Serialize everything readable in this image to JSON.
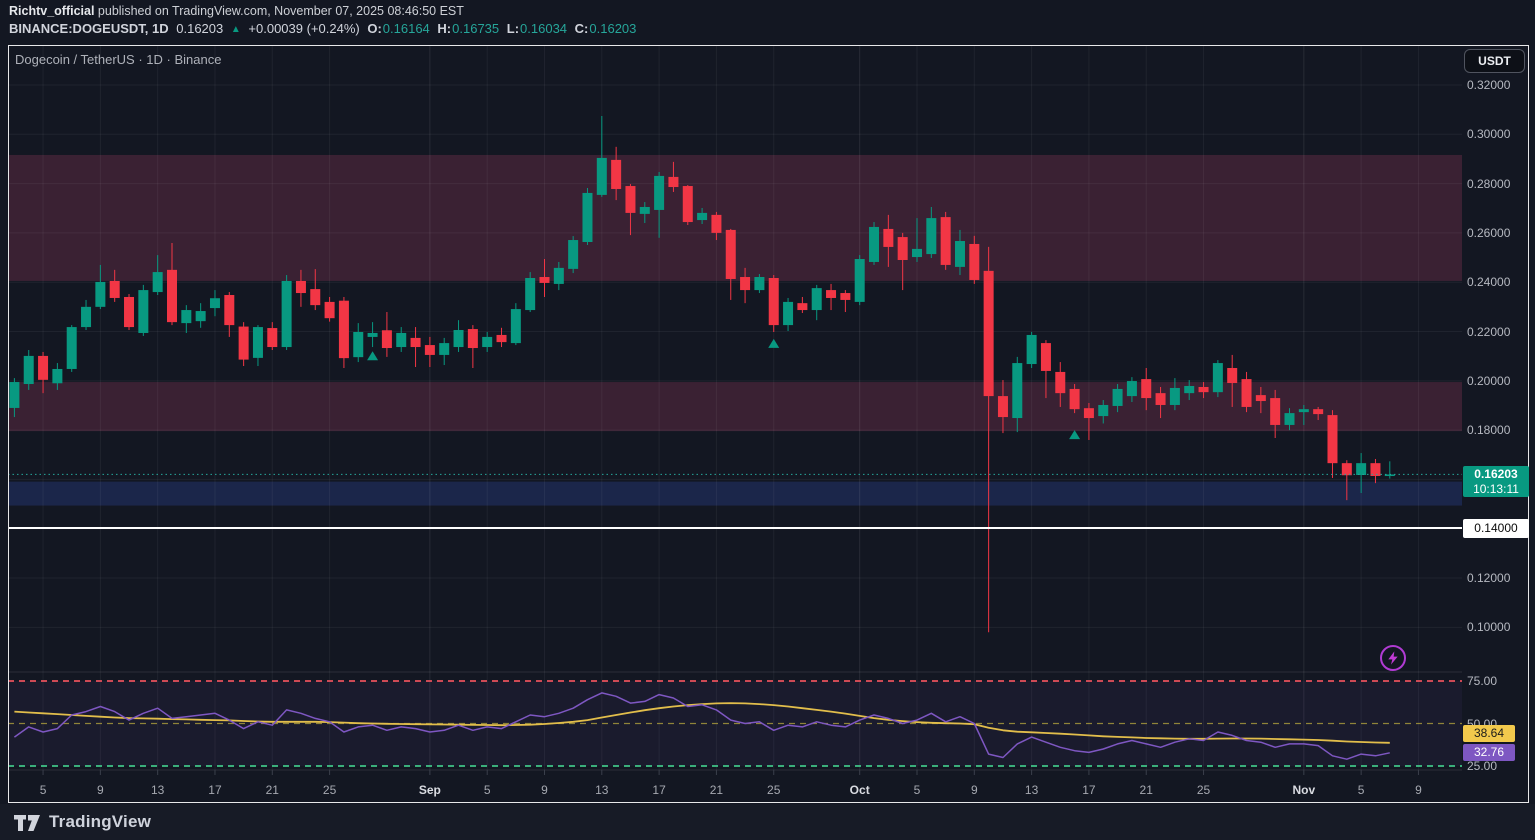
{
  "byline": {
    "author": "Richtv_official",
    "rest": " published on TradingView.com, November 07, 2025 08:46:50 EST"
  },
  "ohlc_bar": {
    "symbol": "BINANCE:DOGEUSDT, 1D",
    "price": "0.16203",
    "change_arrow": "▲",
    "change": "+0.00039 (+0.24%)",
    "o_label": "O:",
    "o_value": "0.16164",
    "h_label": "H:",
    "h_value": "0.16735",
    "l_label": "L:",
    "l_value": "0.16034",
    "c_label": "C:",
    "c_value": "0.16203"
  },
  "chart": {
    "title": "Dogecoin / TetherUS · 1D · Binance"
  },
  "price_scale": {
    "currency_button": "USDT",
    "ticks": [
      {
        "price": 0.32,
        "label": "0.32000"
      },
      {
        "price": 0.3,
        "label": "0.30000"
      },
      {
        "price": 0.28,
        "label": "0.28000"
      },
      {
        "price": 0.26,
        "label": "0.26000"
      },
      {
        "price": 0.24,
        "label": "0.24000"
      },
      {
        "price": 0.22,
        "label": "0.22000"
      },
      {
        "price": 0.2,
        "label": "0.20000"
      },
      {
        "price": 0.18,
        "label": "0.18000"
      },
      {
        "price": 0.12,
        "label": "0.12000"
      },
      {
        "price": 0.1,
        "label": "0.10000"
      }
    ],
    "price_label": {
      "price": "0.16203",
      "countdown": "10:13:11"
    },
    "ray_label": "0.14000",
    "rsi_ma_label": "38.64",
    "rsi_label": "32.76"
  },
  "time_axis": {
    "ticks": [
      {
        "i": 2,
        "label": "5",
        "month": false
      },
      {
        "i": 6,
        "label": "9",
        "month": false
      },
      {
        "i": 10,
        "label": "13",
        "month": false
      },
      {
        "i": 14,
        "label": "17",
        "month": false
      },
      {
        "i": 18,
        "label": "21",
        "month": false
      },
      {
        "i": 22,
        "label": "25",
        "month": false
      },
      {
        "i": 29,
        "label": "Sep",
        "month": true
      },
      {
        "i": 33,
        "label": "5",
        "month": false
      },
      {
        "i": 37,
        "label": "9",
        "month": false
      },
      {
        "i": 41,
        "label": "13",
        "month": false
      },
      {
        "i": 45,
        "label": "17",
        "month": false
      },
      {
        "i": 49,
        "label": "21",
        "month": false
      },
      {
        "i": 53,
        "label": "25",
        "month": false
      },
      {
        "i": 59,
        "label": "Oct",
        "month": true
      },
      {
        "i": 63,
        "label": "5",
        "month": false
      },
      {
        "i": 67,
        "label": "9",
        "month": false
      },
      {
        "i": 71,
        "label": "13",
        "month": false
      },
      {
        "i": 75,
        "label": "17",
        "month": false
      },
      {
        "i": 79,
        "label": "21",
        "month": false
      },
      {
        "i": 83,
        "label": "25",
        "month": false
      },
      {
        "i": 90,
        "label": "Nov",
        "month": true
      },
      {
        "i": 94,
        "label": "5",
        "month": false
      },
      {
        "i": 98,
        "label": "9",
        "month": false
      }
    ]
  },
  "footer": {
    "brand": "TradingView"
  },
  "colors": {
    "background": "#131722",
    "up": "#089981",
    "down": "#f23645",
    "zone_maroon": "#3a2133",
    "zone_navy": "#1b264a",
    "grid": "rgba(255,255,255,0.055)",
    "rsi_line": "#7e57c2",
    "rsi_ma": "#e2be4b",
    "rsi_band_fill": "rgba(126,87,194,0.07)",
    "level_75": "#f2545f",
    "level_50": "#b8a83e",
    "level_25": "#43ce8d",
    "current_price_line": "#26a69a",
    "ray_line": "#ffffff",
    "marker": "#089981",
    "flash": "#b13bd4"
  },
  "chart_data": {
    "type": "candlestick",
    "title": "Dogecoin / TetherUS · 1D · Binance",
    "symbol": "BINANCE:DOGEUSDT",
    "interval": "1D",
    "x_start_date": "2025-08-03",
    "x_end_date": "2025-11-07",
    "ylim": [
      0.0819,
      0.3362
    ],
    "grid": true,
    "price_gridlines": [
      0.32,
      0.3,
      0.28,
      0.26,
      0.24,
      0.22,
      0.2,
      0.18,
      0.16,
      0.14,
      0.12,
      0.1
    ],
    "candles_ohlc": [
      [
        0.189,
        0.2011,
        0.1853,
        0.1995
      ],
      [
        0.1987,
        0.2125,
        0.1963,
        0.2101
      ],
      [
        0.2101,
        0.2117,
        0.195,
        0.2004
      ],
      [
        0.199,
        0.2072,
        0.1963,
        0.2048
      ],
      [
        0.2048,
        0.2226,
        0.2036,
        0.2218
      ],
      [
        0.2218,
        0.2328,
        0.2206,
        0.23
      ],
      [
        0.23,
        0.247,
        0.2291,
        0.2401
      ],
      [
        0.2405,
        0.245,
        0.232,
        0.2336
      ],
      [
        0.234,
        0.2352,
        0.2206,
        0.2218
      ],
      [
        0.2194,
        0.2389,
        0.2182,
        0.2368
      ],
      [
        0.236,
        0.251,
        0.2348,
        0.2441
      ],
      [
        0.245,
        0.2559,
        0.2226,
        0.2238
      ],
      [
        0.2234,
        0.2307,
        0.2194,
        0.2287
      ],
      [
        0.2242,
        0.2315,
        0.2215,
        0.2283
      ],
      [
        0.2295,
        0.2368,
        0.2262,
        0.2335
      ],
      [
        0.2348,
        0.236,
        0.2178,
        0.2226
      ],
      [
        0.222,
        0.2238,
        0.206,
        0.2086
      ],
      [
        0.2093,
        0.2226,
        0.206,
        0.2218
      ],
      [
        0.2214,
        0.2238,
        0.2125,
        0.2137
      ],
      [
        0.2137,
        0.2429,
        0.2125,
        0.2405
      ],
      [
        0.2405,
        0.245,
        0.23,
        0.2356
      ],
      [
        0.2372,
        0.2453,
        0.2287,
        0.2307
      ],
      [
        0.232,
        0.234,
        0.224,
        0.2254
      ],
      [
        0.2325,
        0.234,
        0.2052,
        0.2092
      ],
      [
        0.2096,
        0.2234,
        0.2076,
        0.2198
      ],
      [
        0.2178,
        0.2238,
        0.2137,
        0.2194
      ],
      [
        0.2205,
        0.2279,
        0.2097,
        0.2133
      ],
      [
        0.2137,
        0.2218,
        0.2117,
        0.2194
      ],
      [
        0.2174,
        0.2218,
        0.2056,
        0.2137
      ],
      [
        0.2145,
        0.2178,
        0.2056,
        0.2105
      ],
      [
        0.2105,
        0.2174,
        0.2064,
        0.2153
      ],
      [
        0.2137,
        0.2246,
        0.2117,
        0.2206
      ],
      [
        0.221,
        0.2226,
        0.2052,
        0.2133
      ],
      [
        0.2137,
        0.2198,
        0.2117,
        0.2178
      ],
      [
        0.2186,
        0.2215,
        0.2137,
        0.2157
      ],
      [
        0.2153,
        0.2315,
        0.2145,
        0.2291
      ],
      [
        0.2287,
        0.2441,
        0.2279,
        0.2417
      ],
      [
        0.2421,
        0.2494,
        0.234,
        0.2397
      ],
      [
        0.2393,
        0.2482,
        0.2368,
        0.2458
      ],
      [
        0.2454,
        0.2587,
        0.2437,
        0.2571
      ],
      [
        0.2563,
        0.2782,
        0.2551,
        0.2762
      ],
      [
        0.2754,
        0.3074,
        0.2746,
        0.2904
      ],
      [
        0.2896,
        0.2949,
        0.2733,
        0.2778
      ],
      [
        0.279,
        0.2798,
        0.2591,
        0.2681
      ],
      [
        0.2677,
        0.2725,
        0.264,
        0.2705
      ],
      [
        0.2693,
        0.2847,
        0.258,
        0.2831
      ],
      [
        0.2827,
        0.2888,
        0.2766,
        0.2786
      ],
      [
        0.279,
        0.2794,
        0.2632,
        0.2644
      ],
      [
        0.2652,
        0.2701,
        0.2636,
        0.2681
      ],
      [
        0.2673,
        0.2685,
        0.2571,
        0.26
      ],
      [
        0.2612,
        0.2616,
        0.2328,
        0.2413
      ],
      [
        0.2421,
        0.2458,
        0.2315,
        0.2368
      ],
      [
        0.2368,
        0.2433,
        0.2356,
        0.2421
      ],
      [
        0.2417,
        0.2429,
        0.2198,
        0.2226
      ],
      [
        0.2226,
        0.2336,
        0.2202,
        0.232
      ],
      [
        0.2315,
        0.234,
        0.2275,
        0.2287
      ],
      [
        0.2287,
        0.2389,
        0.2246,
        0.2376
      ],
      [
        0.2368,
        0.2393,
        0.2287,
        0.2336
      ],
      [
        0.2356,
        0.2368,
        0.2279,
        0.2328
      ],
      [
        0.232,
        0.251,
        0.2307,
        0.2494
      ],
      [
        0.2482,
        0.2644,
        0.247,
        0.2624
      ],
      [
        0.2616,
        0.2673,
        0.2462,
        0.2543
      ],
      [
        0.2583,
        0.26,
        0.2368,
        0.249
      ],
      [
        0.2502,
        0.266,
        0.2482,
        0.2535
      ],
      [
        0.2514,
        0.2705,
        0.2498,
        0.266
      ],
      [
        0.2664,
        0.2685,
        0.245,
        0.247
      ],
      [
        0.2462,
        0.2612,
        0.2429,
        0.2567
      ],
      [
        0.2555,
        0.2588,
        0.2393,
        0.2409
      ],
      [
        0.2446,
        0.2543,
        0.098,
        0.1938
      ],
      [
        0.1938,
        0.2003,
        0.1788,
        0.1853
      ],
      [
        0.1849,
        0.2097,
        0.1792,
        0.2072
      ],
      [
        0.2068,
        0.2198,
        0.2052,
        0.2186
      ],
      [
        0.2153,
        0.2165,
        0.193,
        0.204
      ],
      [
        0.2036,
        0.2076,
        0.1894,
        0.195
      ],
      [
        0.1967,
        0.1987,
        0.1869,
        0.1885
      ],
      [
        0.1889,
        0.191,
        0.176,
        0.1849
      ],
      [
        0.1857,
        0.1922,
        0.1827,
        0.1902
      ],
      [
        0.1898,
        0.1987,
        0.1873,
        0.1967
      ],
      [
        0.1938,
        0.2015,
        0.1914,
        0.1999
      ],
      [
        0.2007,
        0.2052,
        0.1881,
        0.193
      ],
      [
        0.195,
        0.1975,
        0.1849,
        0.1902
      ],
      [
        0.1902,
        0.2011,
        0.1881,
        0.1971
      ],
      [
        0.195,
        0.2003,
        0.1922,
        0.1979
      ],
      [
        0.1975,
        0.1995,
        0.193,
        0.1954
      ],
      [
        0.1954,
        0.2084,
        0.1934,
        0.2072
      ],
      [
        0.2052,
        0.2105,
        0.1894,
        0.1991
      ],
      [
        0.2007,
        0.2036,
        0.1873,
        0.1894
      ],
      [
        0.1942,
        0.1975,
        0.1869,
        0.1918
      ],
      [
        0.193,
        0.1963,
        0.1768,
        0.1821
      ],
      [
        0.1821,
        0.1889,
        0.18,
        0.1869
      ],
      [
        0.1873,
        0.1902,
        0.1821,
        0.1885
      ],
      [
        0.1885,
        0.1894,
        0.1841,
        0.1865
      ],
      [
        0.1861,
        0.1881,
        0.1606,
        0.1666
      ],
      [
        0.1666,
        0.1678,
        0.1516,
        0.1617
      ],
      [
        0.1618,
        0.1707,
        0.1545,
        0.1666
      ],
      [
        0.1666,
        0.1683,
        0.1585,
        0.1614
      ],
      [
        0.16164,
        0.16735,
        0.16034,
        0.16203
      ]
    ],
    "markers_triangle_up": [
      {
        "index": 25,
        "anchor_price": 0.212
      },
      {
        "index": 53,
        "anchor_price": 0.217
      },
      {
        "index": 74,
        "anchor_price": 0.18
      }
    ],
    "zones": [
      {
        "from": 0.2916,
        "to": 0.2405,
        "style": "maroon"
      },
      {
        "from": 0.1995,
        "to": 0.1796,
        "style": "maroon"
      },
      {
        "from": 0.1591,
        "to": 0.1494,
        "style": "navy"
      }
    ],
    "hlines": [
      {
        "price": 0.1403,
        "style": "ray-white",
        "label": "0.14000"
      },
      {
        "price": 0.16203,
        "style": "current-dotted"
      }
    ],
    "rsi": {
      "levels": [
        {
          "value": 75,
          "label": "75.00"
        },
        {
          "value": 50,
          "label": "50.00"
        },
        {
          "value": 25,
          "label": "25.00"
        }
      ],
      "ylim": [
        22.6,
        80.3
      ],
      "last_value": 32.76,
      "ma_last_value": 38.64,
      "values": [
        42,
        48,
        45,
        47,
        55,
        57,
        60,
        57,
        52,
        56,
        59,
        53,
        54,
        55,
        56,
        52,
        47,
        51,
        49,
        58,
        56,
        53,
        51,
        45,
        48,
        49,
        46,
        48,
        47,
        45,
        46,
        49,
        46,
        48,
        47,
        51,
        55,
        54,
        56,
        59,
        64,
        68,
        66,
        62,
        63,
        67,
        65,
        60,
        61,
        58,
        52,
        50,
        51,
        46,
        49,
        48,
        51,
        49,
        48,
        52,
        55,
        53,
        50,
        52,
        56,
        51,
        54,
        50,
        32,
        30,
        38,
        42,
        39,
        36,
        34,
        33,
        35,
        38,
        40,
        38,
        36,
        39,
        41,
        40,
        45,
        43,
        40,
        39,
        36,
        38,
        38,
        37,
        31,
        29,
        32,
        31,
        32.76
      ],
      "ma": [
        57,
        56.5,
        56,
        55.5,
        55,
        54.5,
        54,
        53.5,
        53.2,
        53,
        52.8,
        52.6,
        52.4,
        52.2,
        52,
        51.8,
        51.5,
        51.2,
        51,
        51,
        51,
        51,
        50.8,
        50.5,
        50.2,
        50,
        49.8,
        49.7,
        49.6,
        49.5,
        49.4,
        49.3,
        49.2,
        49.1,
        49,
        49.1,
        49.3,
        49.7,
        50.3,
        51,
        52,
        53.5,
        55,
        56.5,
        57.8,
        59,
        60,
        60.8,
        61.4,
        61.8,
        62,
        61.8,
        61.4,
        60.8,
        60,
        59,
        58,
        57,
        55.8,
        54.5,
        53.2,
        52.2,
        51.4,
        50.8,
        50.4,
        50.2,
        50,
        49.6,
        47.5,
        46,
        45.2,
        44.8,
        44.4,
        44,
        43.5,
        43,
        42.5,
        42.1,
        41.8,
        41.5,
        41.3,
        41.1,
        41,
        41,
        41.1,
        41.2,
        41.2,
        41.1,
        40.9,
        40.7,
        40.5,
        40.3,
        39.9,
        39.4,
        39.1,
        38.8,
        38.64
      ]
    }
  }
}
